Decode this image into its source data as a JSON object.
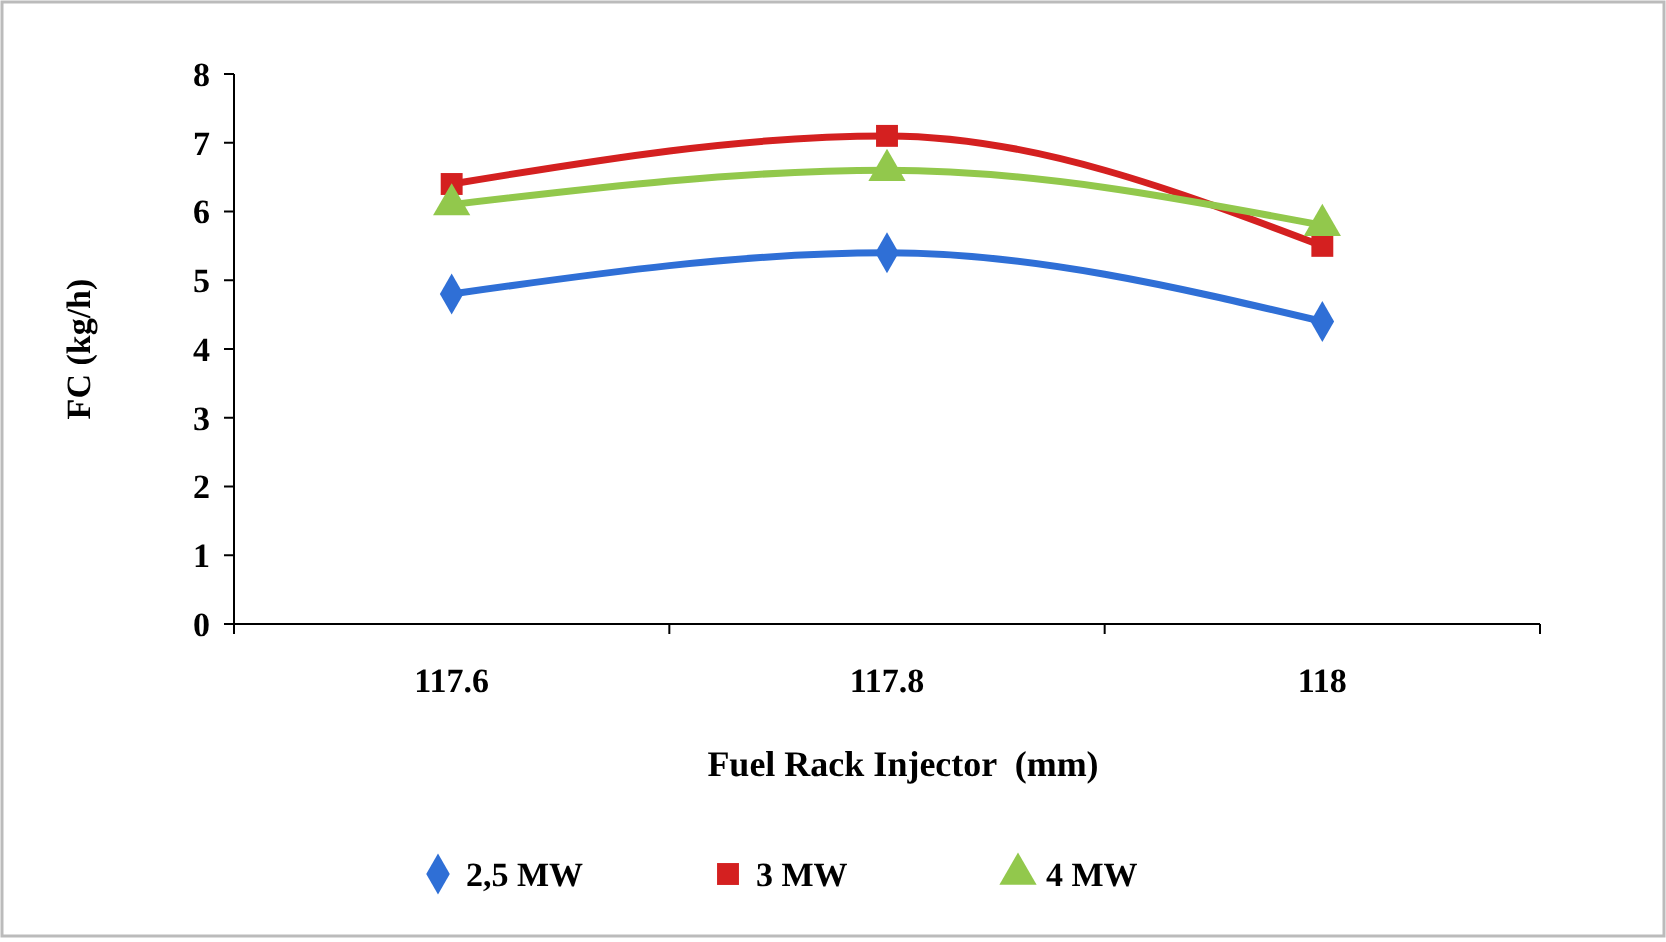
{
  "chart_data": {
    "type": "line",
    "xlabel": "Fuel Rack Injector  (mm)",
    "ylabel": "FC (kg/h)",
    "categories": [
      "117.6",
      "117.8",
      "118"
    ],
    "ylim": [
      0,
      8
    ],
    "yticks": [
      0,
      1,
      2,
      3,
      4,
      5,
      6,
      7,
      8
    ],
    "grid": false,
    "legend": "bottom",
    "line_style": "solid",
    "series": [
      {
        "name": "2,5 MW",
        "color": "#2f6fd6",
        "marker": "diamond",
        "values": [
          4.8,
          5.4,
          4.4
        ]
      },
      {
        "name": "3 MW",
        "color": "#d42020",
        "marker": "square",
        "values": [
          6.4,
          7.1,
          5.5
        ]
      },
      {
        "name": "4 MW",
        "color": "#92c84c",
        "marker": "triangle",
        "values": [
          6.1,
          6.6,
          5.8
        ]
      }
    ]
  }
}
